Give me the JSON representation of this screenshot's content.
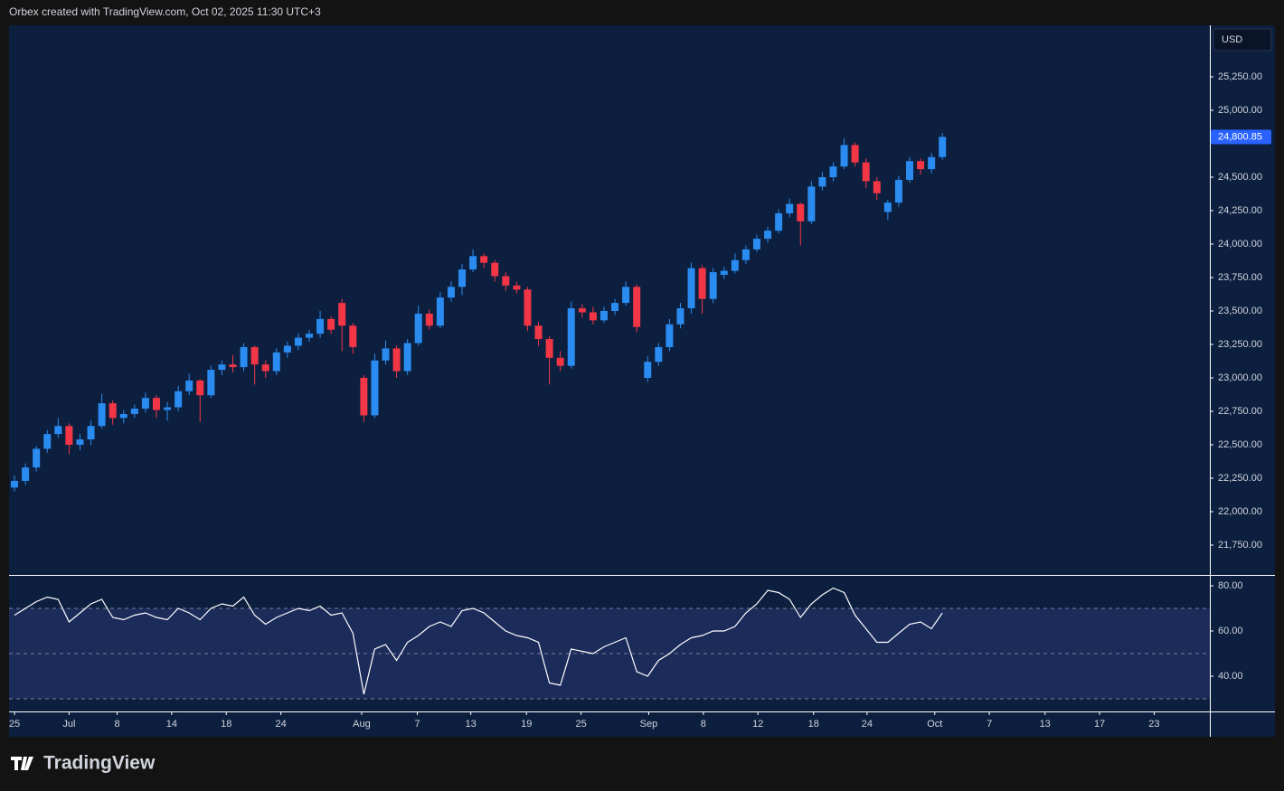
{
  "header": "Orbex created with TradingView.com, Oct 02, 2025 11:30 UTC+3",
  "footer_logo": "TradingView",
  "currency": "USD",
  "chart_data": [
    {
      "type": "candlestick",
      "up_color": "#2a8cf0",
      "down_color": "#f23645",
      "xlim": [
        -0.5,
        109.5
      ],
      "ylim": [
        21527,
        25635
      ],
      "yticks": [
        {
          "value": 21750,
          "label": "21,750.00"
        },
        {
          "value": 22000,
          "label": "22,000.00"
        },
        {
          "value": 22250,
          "label": "22,250.00"
        },
        {
          "value": 22500,
          "label": "22,500.00"
        },
        {
          "value": 22750,
          "label": "22,750.00"
        },
        {
          "value": 23000,
          "label": "23,000.00"
        },
        {
          "value": 23250,
          "label": "23,250.00"
        },
        {
          "value": 23500,
          "label": "23,500.00"
        },
        {
          "value": 23750,
          "label": "23,750.00"
        },
        {
          "value": 24000,
          "label": "24,000.00"
        },
        {
          "value": 24250,
          "label": "24,250.00"
        },
        {
          "value": 24500,
          "label": "24,500.00"
        },
        {
          "value": 25000,
          "label": "25,000.00"
        },
        {
          "value": 25250,
          "label": "25,250.00"
        }
      ],
      "last_price": {
        "value": 24800.85,
        "label": "24,800.85"
      },
      "xticks": [
        {
          "value": 0,
          "label": "25"
        },
        {
          "value": 5,
          "label": "Jul"
        },
        {
          "value": 9.4,
          "label": "8"
        },
        {
          "value": 14.4,
          "label": "14"
        },
        {
          "value": 19.4,
          "label": "18"
        },
        {
          "value": 24.4,
          "label": "24"
        },
        {
          "value": 31.8,
          "label": "Aug"
        },
        {
          "value": 36.9,
          "label": "7"
        },
        {
          "value": 41.8,
          "label": "13"
        },
        {
          "value": 46.9,
          "label": "19"
        },
        {
          "value": 51.9,
          "label": "25"
        },
        {
          "value": 58.1,
          "label": "Sep"
        },
        {
          "value": 63.1,
          "label": "8"
        },
        {
          "value": 68.1,
          "label": "12"
        },
        {
          "value": 73.2,
          "label": "18"
        },
        {
          "value": 78.1,
          "label": "24"
        },
        {
          "value": 84.3,
          "label": "Oct"
        },
        {
          "value": 89.3,
          "label": "7"
        },
        {
          "value": 94.4,
          "label": "13"
        },
        {
          "value": 99.4,
          "label": "17"
        },
        {
          "value": 104.4,
          "label": "23"
        }
      ],
      "ohlc": [
        [
          22180,
          22270,
          22150,
          22230
        ],
        [
          22230,
          22360,
          22200,
          22330
        ],
        [
          22330,
          22490,
          22300,
          22470
        ],
        [
          22470,
          22610,
          22440,
          22580
        ],
        [
          22580,
          22700,
          22550,
          22640
        ],
        [
          22640,
          22660,
          22430,
          22500
        ],
        [
          22500,
          22580,
          22460,
          22540
        ],
        [
          22540,
          22680,
          22500,
          22640
        ],
        [
          22640,
          22880,
          22620,
          22810
        ],
        [
          22810,
          22830,
          22650,
          22700
        ],
        [
          22700,
          22760,
          22660,
          22730
        ],
        [
          22730,
          22800,
          22700,
          22770
        ],
        [
          22770,
          22890,
          22740,
          22850
        ],
        [
          22850,
          22870,
          22700,
          22760
        ],
        [
          22760,
          22820,
          22680,
          22780
        ],
        [
          22780,
          22940,
          22750,
          22900
        ],
        [
          22900,
          23030,
          22870,
          22980
        ],
        [
          22980,
          22990,
          22670,
          22870
        ],
        [
          22870,
          23090,
          22850,
          23060
        ],
        [
          23060,
          23130,
          23020,
          23100
        ],
        [
          23100,
          23170,
          23040,
          23080
        ],
        [
          23080,
          23260,
          23050,
          23230
        ],
        [
          23230,
          23240,
          22950,
          23100
        ],
        [
          23100,
          23130,
          23000,
          23050
        ],
        [
          23050,
          23220,
          23020,
          23190
        ],
        [
          23190,
          23270,
          23150,
          23240
        ],
        [
          23240,
          23330,
          23210,
          23300
        ],
        [
          23300,
          23360,
          23270,
          23330
        ],
        [
          23330,
          23500,
          23300,
          23440
        ],
        [
          23440,
          23460,
          23330,
          23360
        ],
        [
          23560,
          23590,
          23200,
          23390
        ],
        [
          23390,
          23410,
          23180,
          23230
        ],
        [
          23000,
          23020,
          22670,
          22720
        ],
        [
          22720,
          23180,
          22700,
          23130
        ],
        [
          23130,
          23280,
          23100,
          23220
        ],
        [
          23220,
          23240,
          23000,
          23050
        ],
        [
          23050,
          23290,
          23020,
          23260
        ],
        [
          23260,
          23540,
          23240,
          23480
        ],
        [
          23480,
          23510,
          23360,
          23390
        ],
        [
          23390,
          23640,
          23370,
          23600
        ],
        [
          23600,
          23720,
          23570,
          23680
        ],
        [
          23680,
          23850,
          23620,
          23810
        ],
        [
          23810,
          23960,
          23790,
          23910
        ],
        [
          23910,
          23930,
          23820,
          23860
        ],
        [
          23860,
          23880,
          23720,
          23760
        ],
        [
          23760,
          23790,
          23650,
          23690
        ],
        [
          23690,
          23720,
          23630,
          23660
        ],
        [
          23660,
          23680,
          23350,
          23390
        ],
        [
          23390,
          23420,
          23240,
          23290
        ],
        [
          23290,
          23310,
          22950,
          23150
        ],
        [
          23150,
          23200,
          23050,
          23090
        ],
        [
          23090,
          23570,
          23070,
          23520
        ],
        [
          23520,
          23550,
          23450,
          23490
        ],
        [
          23490,
          23530,
          23400,
          23430
        ],
        [
          23430,
          23530,
          23410,
          23500
        ],
        [
          23500,
          23590,
          23470,
          23560
        ],
        [
          23560,
          23720,
          23540,
          23680
        ],
        [
          23680,
          23700,
          23340,
          23380
        ],
        [
          23000,
          23160,
          22970,
          23120
        ],
        [
          23120,
          23260,
          23090,
          23230
        ],
        [
          23230,
          23440,
          23200,
          23400
        ],
        [
          23400,
          23560,
          23370,
          23520
        ],
        [
          23520,
          23860,
          23480,
          23820
        ],
        [
          23820,
          23840,
          23480,
          23590
        ],
        [
          23590,
          23820,
          23560,
          23790
        ],
        [
          23770,
          23830,
          23740,
          23800
        ],
        [
          23800,
          23930,
          23780,
          23880
        ],
        [
          23880,
          23990,
          23850,
          23960
        ],
        [
          23960,
          24070,
          23940,
          24040
        ],
        [
          24040,
          24130,
          24010,
          24100
        ],
        [
          24100,
          24260,
          24080,
          24230
        ],
        [
          24230,
          24340,
          24200,
          24300
        ],
        [
          24300,
          24310,
          23990,
          24170
        ],
        [
          24170,
          24470,
          24150,
          24430
        ],
        [
          24430,
          24540,
          24400,
          24500
        ],
        [
          24500,
          24610,
          24470,
          24580
        ],
        [
          24580,
          24790,
          24560,
          24740
        ],
        [
          24740,
          24760,
          24580,
          24610
        ],
        [
          24610,
          24640,
          24420,
          24470
        ],
        [
          24470,
          24500,
          24330,
          24380
        ],
        [
          24240,
          24330,
          24180,
          24310
        ],
        [
          24310,
          24510,
          24280,
          24480
        ],
        [
          24480,
          24650,
          24460,
          24620
        ],
        [
          24620,
          24640,
          24520,
          24560
        ],
        [
          24560,
          24680,
          24530,
          24650
        ],
        [
          24650,
          24830,
          24630,
          24800.85
        ]
      ]
    },
    {
      "type": "line",
      "color": "#ffffff",
      "xlim": [
        -0.5,
        109.5
      ],
      "ylim": [
        24.4,
        84.4
      ],
      "yticks": [
        {
          "value": 40,
          "label": "40.00"
        },
        {
          "value": 60,
          "label": "60.00"
        },
        {
          "value": 80,
          "label": "80.00"
        }
      ],
      "levels": [
        30,
        50,
        70
      ],
      "values": [
        67,
        70,
        73,
        75,
        74,
        64,
        68,
        72,
        74,
        66,
        65,
        67,
        68,
        66,
        65,
        70,
        68,
        65,
        70,
        72,
        71,
        75,
        67,
        63,
        66,
        68,
        70,
        69,
        71,
        67,
        68,
        59,
        32,
        52,
        54,
        47,
        55,
        58,
        62,
        64,
        62,
        69,
        70,
        68,
        64,
        60,
        58,
        57,
        55,
        37,
        36,
        52,
        51,
        50,
        53,
        55,
        57,
        42,
        40,
        47,
        50,
        54,
        57,
        58,
        60,
        60,
        62,
        68,
        72,
        78,
        77,
        74,
        66,
        72,
        76,
        79,
        77,
        67,
        61,
        55,
        55,
        59,
        63,
        64,
        61,
        68
      ]
    }
  ]
}
